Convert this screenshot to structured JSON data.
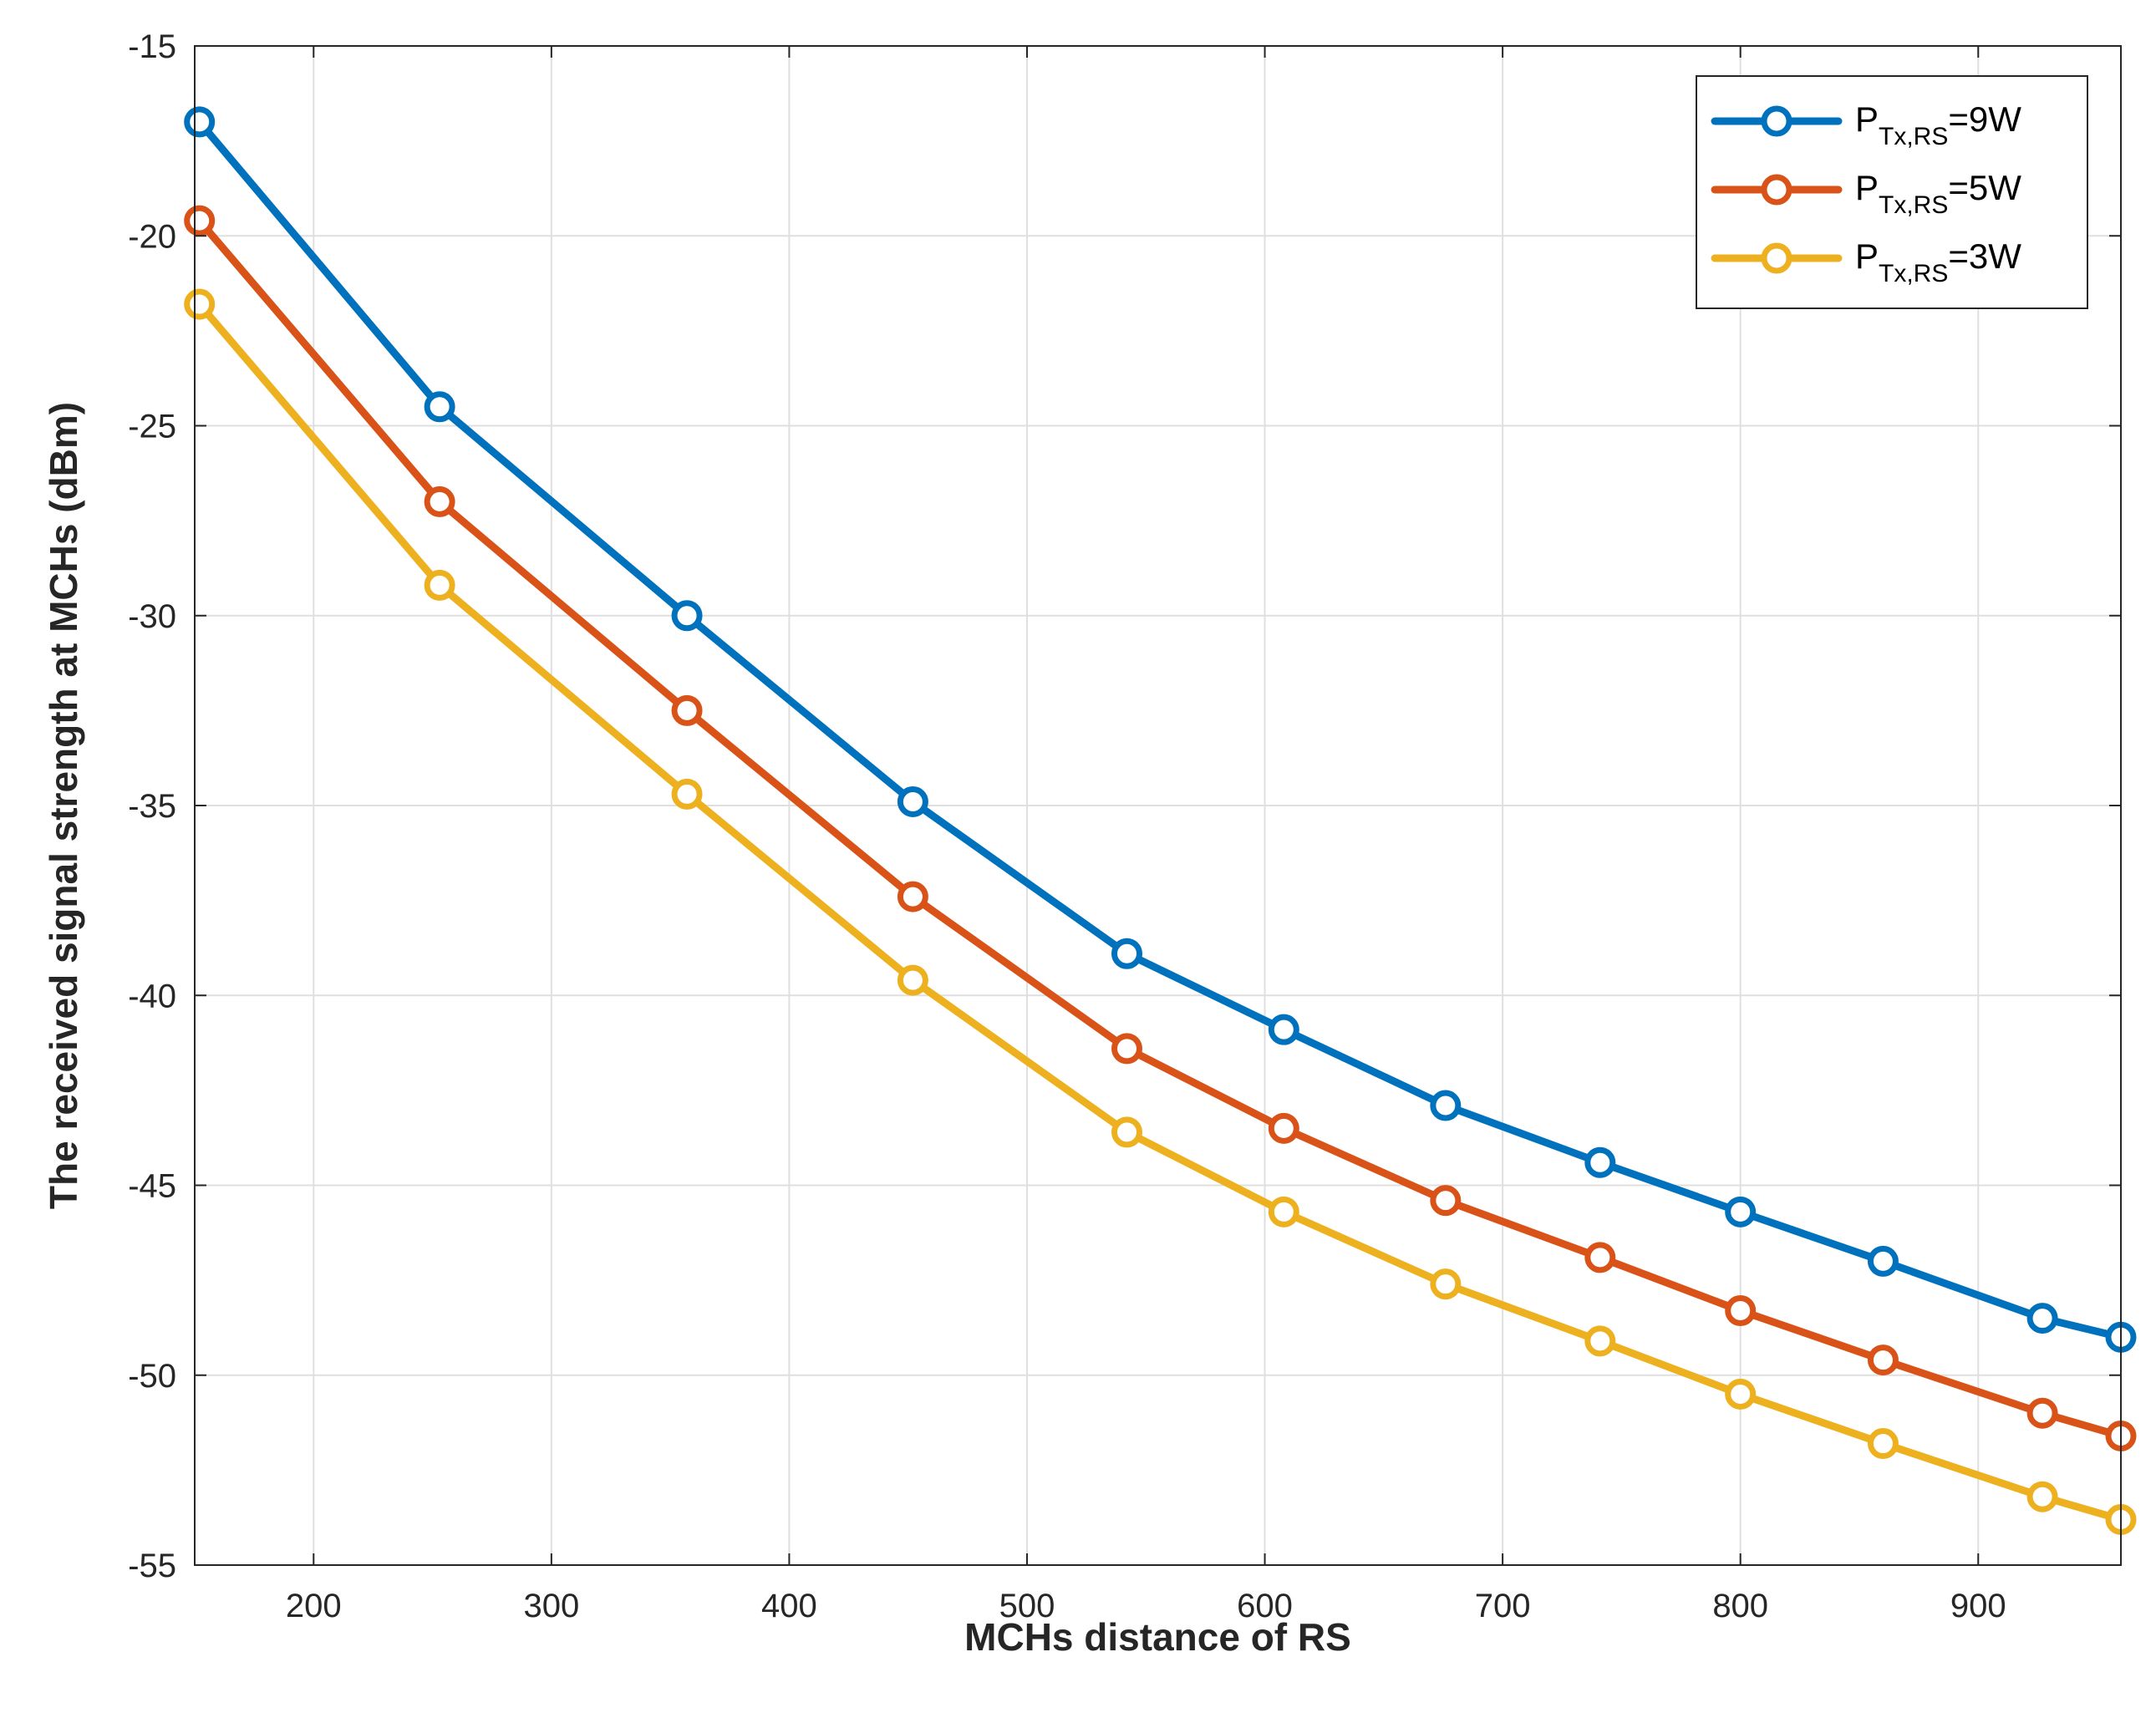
{
  "chart_data": {
    "type": "line",
    "title": "",
    "xlabel": "MCHs distance of RS",
    "ylabel": "The received signal strength at MCHs (dBm)",
    "xlim": [
      150,
      960
    ],
    "ylim": [
      -55,
      -15
    ],
    "xticks": [
      200,
      300,
      400,
      500,
      600,
      700,
      800,
      900
    ],
    "yticks": [
      -15,
      -20,
      -25,
      -30,
      -35,
      -40,
      -45,
      -50,
      -55
    ],
    "grid": true,
    "legend_position": "top-right",
    "x": [
      152,
      253,
      357,
      452,
      542,
      608,
      676,
      741,
      800,
      860,
      927,
      960
    ],
    "series": [
      {
        "name": "P_{Tx,RS}=9W",
        "label_main": "P",
        "label_sub": "Tx,RS",
        "label_suffix": "=9W",
        "color": "#0072BD",
        "values": [
          -17.0,
          -24.5,
          -30.0,
          -34.9,
          -38.9,
          -40.9,
          -42.9,
          -44.4,
          -45.7,
          -47.0,
          -48.5,
          -49.0
        ]
      },
      {
        "name": "P_{Tx,RS}=5W",
        "label_main": "P",
        "label_sub": "Tx,RS",
        "label_suffix": "=5W",
        "color": "#D95319",
        "values": [
          -19.6,
          -27.0,
          -32.5,
          -37.4,
          -41.4,
          -43.5,
          -45.4,
          -46.9,
          -48.3,
          -49.6,
          -51.0,
          -51.6
        ]
      },
      {
        "name": "P_{Tx,RS}=3W",
        "label_main": "P",
        "label_sub": "Tx,RS",
        "label_suffix": "=3W",
        "color": "#EDB120",
        "values": [
          -21.8,
          -29.2,
          -34.7,
          -39.6,
          -43.6,
          -45.7,
          -47.6,
          -49.1,
          -50.5,
          -51.8,
          -53.2,
          -53.8
        ]
      }
    ]
  }
}
